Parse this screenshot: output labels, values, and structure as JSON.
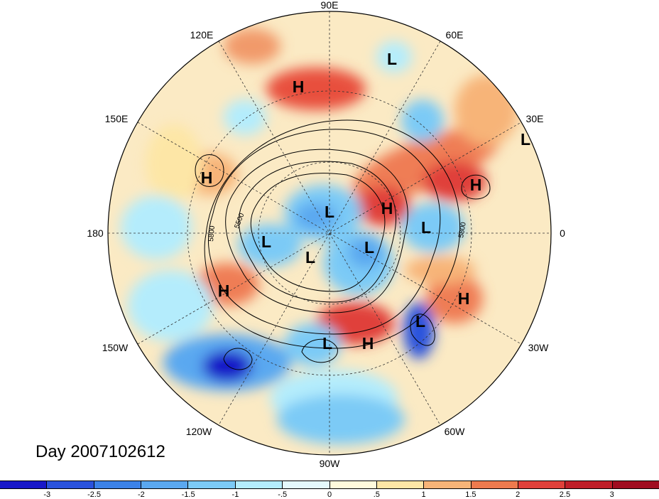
{
  "map": {
    "title": "Day 2007102612",
    "projection": "north polar stereographic",
    "longitude_labels": [
      "90E",
      "60E",
      "30E",
      "0",
      "30W",
      "60W",
      "90W",
      "120W",
      "150W",
      "180",
      "150E",
      "120E"
    ],
    "contour_labels": [
      "5500",
      "5800",
      "5800"
    ],
    "pressure_centers": [
      {
        "label": "H",
        "color": "#000000"
      },
      {
        "label": "L",
        "color": "#000000"
      },
      {
        "label": "H",
        "color": "#000000"
      },
      {
        "label": "L",
        "color": "#000000"
      },
      {
        "label": "H",
        "color": "#000000"
      },
      {
        "label": "L",
        "color": "#000000"
      },
      {
        "label": "H",
        "color": "#000000"
      },
      {
        "label": "L",
        "color": "#000000"
      },
      {
        "label": "L",
        "color": "#000000"
      },
      {
        "label": "H",
        "color": "#000000"
      },
      {
        "label": "L",
        "color": "#000000"
      },
      {
        "label": "L",
        "color": "#000000"
      },
      {
        "label": "H",
        "color": "#000000"
      },
      {
        "label": "L",
        "color": "#000000"
      },
      {
        "label": "H",
        "color": "#000000"
      },
      {
        "label": "L",
        "color": "#000000"
      }
    ]
  },
  "colorbar": {
    "labels": [
      "-3",
      "-2.5",
      "-2",
      "-1.5",
      "-1",
      "-.5",
      "0",
      ".5",
      "1",
      "1.5",
      "2",
      "2.5",
      "3"
    ],
    "colors": [
      "#1818c8",
      "#2a52dc",
      "#3c82e8",
      "#5aa8f0",
      "#7ccaf6",
      "#b4ecfc",
      "#e4f8fc",
      "#fffadc",
      "#fde6a6",
      "#f7b478",
      "#ee7a4e",
      "#e0403a",
      "#bf1e28",
      "#a00c20"
    ]
  }
}
